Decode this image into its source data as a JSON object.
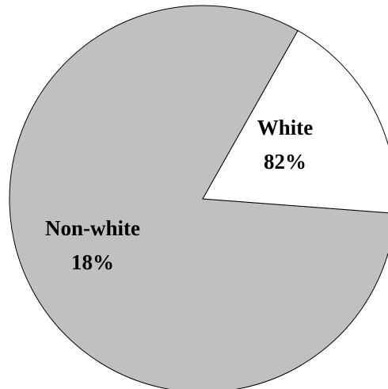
{
  "chart_data": {
    "type": "pie",
    "title": "",
    "slices": [
      {
        "label": "White",
        "value": 82,
        "value_label": "82%",
        "color": "#c0c0c0"
      },
      {
        "label": "Non-white",
        "value": 18,
        "value_label": "18%",
        "color": "#ffffff"
      }
    ],
    "legend": "none",
    "data_labels": "inside"
  }
}
